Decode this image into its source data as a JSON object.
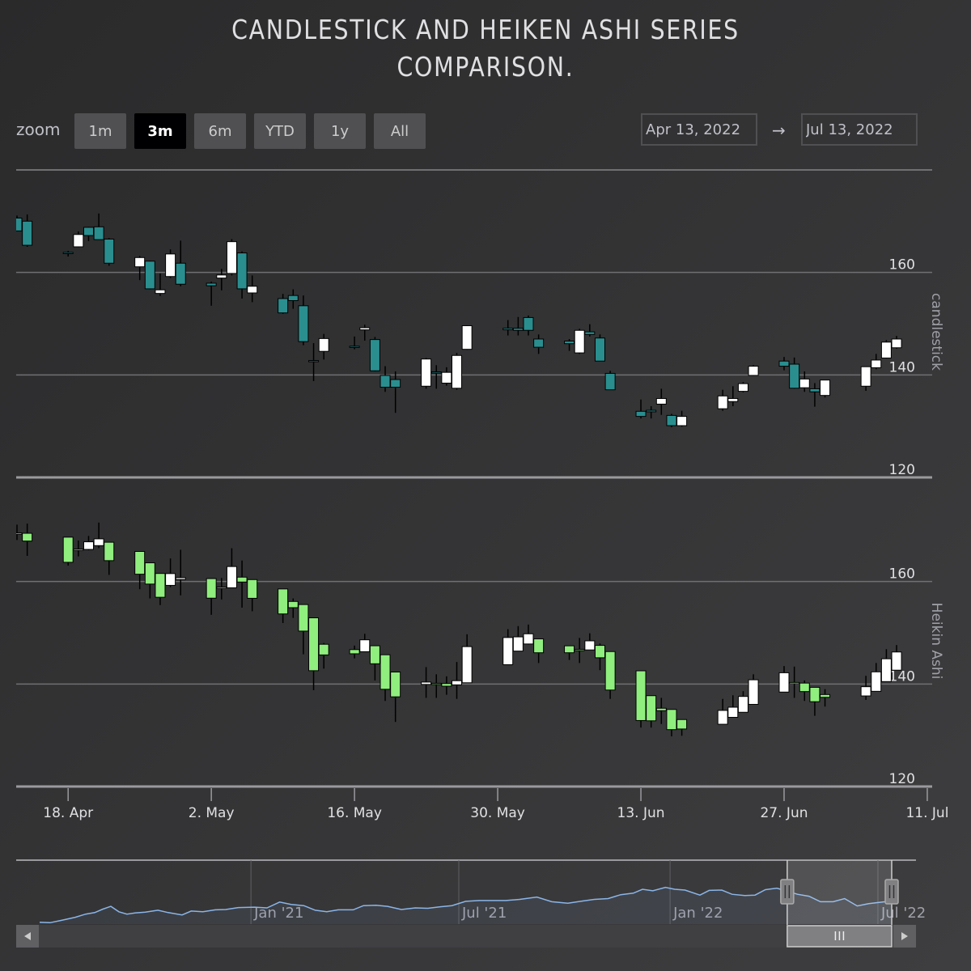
{
  "title_line1": "CANDLESTICK AND HEIKEN ASHI SERIES",
  "title_line2": "COMPARISON.",
  "range_selector": {
    "zoom_label": "zoom",
    "buttons": [
      "1m",
      "3m",
      "6m",
      "YTD",
      "1y",
      "All"
    ],
    "active": "3m",
    "from": "Apr 13, 2022",
    "arrow": "→",
    "to": "Jul 13, 2022"
  },
  "colors": {
    "candle_down": "#2a8e8f",
    "candle_up": "#ffffff",
    "ha_down": "#90ee7e",
    "ha_up": "#ffffff",
    "grid": "#707073",
    "navigator_line": "#8bb5e8"
  },
  "chart_data": [
    {
      "type": "candlestick",
      "name": "candlestick",
      "y_axis_title": "candlestick",
      "y_ticks": [
        120,
        140,
        160
      ],
      "ylim": [
        120,
        180
      ],
      "x_ticks": [
        "18. Apr",
        "2. May",
        "16. May",
        "30. May",
        "13. Jun",
        "27. Jun",
        "11. Jul"
      ],
      "dates": [
        "2022-04-13",
        "2022-04-14",
        "2022-04-18",
        "2022-04-19",
        "2022-04-20",
        "2022-04-21",
        "2022-04-22",
        "2022-04-25",
        "2022-04-26",
        "2022-04-27",
        "2022-04-28",
        "2022-04-29",
        "2022-05-02",
        "2022-05-03",
        "2022-05-04",
        "2022-05-05",
        "2022-05-06",
        "2022-05-09",
        "2022-05-10",
        "2022-05-11",
        "2022-05-12",
        "2022-05-13",
        "2022-05-16",
        "2022-05-17",
        "2022-05-18",
        "2022-05-19",
        "2022-05-20",
        "2022-05-23",
        "2022-05-24",
        "2022-05-25",
        "2022-05-26",
        "2022-05-27",
        "2022-05-31",
        "2022-06-01",
        "2022-06-02",
        "2022-06-03",
        "2022-06-06",
        "2022-06-07",
        "2022-06-08",
        "2022-06-09",
        "2022-06-10",
        "2022-06-13",
        "2022-06-14",
        "2022-06-15",
        "2022-06-16",
        "2022-06-17",
        "2022-06-21",
        "2022-06-22",
        "2022-06-23",
        "2022-06-24",
        "2022-06-27",
        "2022-06-28",
        "2022-06-29",
        "2022-06-30",
        "2022-07-01",
        "2022-07-05",
        "2022-07-06",
        "2022-07-07",
        "2022-07-08",
        "2022-07-11",
        "2022-07-12",
        "2022-07-13"
      ],
      "ohlc": [
        [
          170.6,
          171.1,
          168.1,
          168.1
        ],
        [
          170.0,
          171.3,
          165.0,
          165.3
        ],
        [
          163.9,
          164.2,
          163.1,
          163.8
        ],
        [
          165.0,
          168.0,
          164.9,
          167.4
        ],
        [
          168.8,
          168.9,
          166.1,
          167.2
        ],
        [
          168.9,
          171.5,
          166.5,
          166.4
        ],
        [
          166.5,
          166.7,
          161.3,
          161.8
        ],
        [
          161.1,
          163.2,
          158.5,
          162.9
        ],
        [
          162.2,
          162.3,
          156.7,
          156.8
        ],
        [
          155.9,
          159.8,
          155.4,
          156.6
        ],
        [
          159.2,
          164.5,
          158.9,
          163.6
        ],
        [
          161.8,
          166.2,
          157.3,
          157.7
        ],
        [
          157.9,
          158.2,
          153.5,
          157.4
        ],
        [
          158.9,
          160.7,
          156.5,
          159.5
        ],
        [
          159.8,
          166.5,
          159.4,
          166.0
        ],
        [
          163.8,
          164.1,
          154.9,
          156.8
        ],
        [
          156.0,
          159.4,
          154.2,
          157.3
        ],
        [
          154.9,
          155.8,
          151.9,
          152.1
        ],
        [
          155.5,
          156.7,
          152.9,
          154.5
        ],
        [
          153.5,
          155.5,
          145.8,
          146.5
        ],
        [
          142.8,
          146.2,
          138.8,
          142.6
        ],
        [
          144.6,
          148.0,
          143.0,
          147.1
        ],
        [
          145.6,
          147.5,
          145.0,
          145.5
        ],
        [
          148.8,
          149.8,
          146.7,
          149.2
        ],
        [
          146.9,
          147.4,
          140.7,
          140.8
        ],
        [
          139.9,
          141.7,
          136.7,
          137.6
        ],
        [
          139.1,
          140.7,
          132.6,
          137.6
        ],
        [
          137.8,
          143.3,
          137.3,
          143.1
        ],
        [
          140.6,
          141.9,
          137.3,
          140.4
        ],
        [
          138.4,
          141.5,
          137.9,
          140.5
        ],
        [
          137.4,
          144.3,
          137.1,
          143.8
        ],
        [
          145.0,
          149.7,
          144.9,
          149.6
        ],
        [
          149.1,
          150.7,
          147.7,
          148.8
        ],
        [
          149.1,
          151.3,
          147.7,
          148.7
        ],
        [
          151.2,
          151.6,
          147.7,
          148.7
        ],
        [
          147.0,
          147.9,
          144.1,
          145.4
        ],
        [
          146.6,
          147.0,
          144.7,
          146.1
        ],
        [
          144.3,
          149.0,
          144.1,
          148.7
        ],
        [
          148.4,
          149.9,
          147.5,
          147.9
        ],
        [
          147.2,
          147.9,
          142.7,
          142.7
        ],
        [
          140.3,
          140.8,
          137.1,
          137.1
        ],
        [
          132.9,
          135.2,
          131.5,
          131.9
        ],
        [
          133.1,
          133.9,
          131.5,
          132.8
        ],
        [
          134.3,
          137.3,
          132.2,
          135.4
        ],
        [
          132.1,
          132.4,
          129.8,
          130.1
        ],
        [
          130.1,
          133.0,
          129.9,
          131.9
        ],
        [
          133.4,
          137.1,
          133.0,
          135.9
        ],
        [
          134.8,
          137.8,
          133.9,
          135.4
        ],
        [
          136.8,
          138.6,
          136.6,
          138.3
        ],
        [
          139.9,
          141.9,
          139.8,
          141.7
        ],
        [
          142.7,
          143.5,
          140.9,
          141.7
        ],
        [
          142.1,
          143.4,
          137.3,
          137.4
        ],
        [
          137.5,
          140.7,
          136.7,
          139.2
        ],
        [
          137.3,
          138.4,
          133.8,
          136.7
        ],
        [
          136.0,
          139.0,
          135.6,
          139.0
        ],
        [
          137.8,
          141.6,
          136.9,
          141.6
        ],
        [
          141.4,
          144.1,
          141.1,
          142.9
        ],
        [
          143.3,
          146.8,
          143.2,
          146.4
        ],
        [
          145.3,
          147.6,
          145.1,
          147.0
        ],
        [
          146.1,
          146.6,
          143.2,
          144.9
        ],
        [
          145.8,
          148.5,
          145.0,
          145.9
        ],
        [
          142.9,
          146.5,
          142.1,
          145.3
        ]
      ]
    },
    {
      "type": "heikinashi",
      "name": "Heikin Ashi",
      "y_axis_title": "Heikin Ashi",
      "y_ticks": [
        120,
        140,
        160
      ],
      "ylim": [
        120,
        180
      ],
      "x_ticks": [
        "18. Apr",
        "2. May",
        "16. May",
        "30. May",
        "13. Jun",
        "27. Jun",
        "11. Jul"
      ],
      "derived_from": "candlestick ohlc"
    },
    {
      "type": "area",
      "name": "navigator",
      "x_ticks": [
        "Jan '21",
        "Jul '21",
        "Jan '22",
        "Jul '22"
      ],
      "xlim": [
        "2020-07-01",
        "2022-07-13"
      ],
      "selected_range": [
        "2022-04-13",
        "2022-07-13"
      ],
      "points": [
        [
          "2020-07-01",
          90
        ],
        [
          "2020-07-10",
          89
        ],
        [
          "2020-07-20",
          95
        ],
        [
          "2020-08-01",
          103
        ],
        [
          "2020-08-10",
          111
        ],
        [
          "2020-08-18",
          115
        ],
        [
          "2020-08-25",
          124
        ],
        [
          "2020-09-01",
          131
        ],
        [
          "2020-09-08",
          117
        ],
        [
          "2020-09-15",
          111
        ],
        [
          "2020-09-22",
          114
        ],
        [
          "2020-10-01",
          116
        ],
        [
          "2020-10-12",
          121
        ],
        [
          "2020-10-21",
          115
        ],
        [
          "2020-11-02",
          109
        ],
        [
          "2020-11-10",
          119
        ],
        [
          "2020-11-20",
          117
        ],
        [
          "2020-12-01",
          122
        ],
        [
          "2020-12-10",
          123
        ],
        [
          "2020-12-21",
          128
        ],
        [
          "2021-01-04",
          129
        ],
        [
          "2021-01-15",
          127
        ],
        [
          "2021-01-26",
          142
        ],
        [
          "2021-02-05",
          136
        ],
        [
          "2021-02-16",
          133
        ],
        [
          "2021-02-26",
          121
        ],
        [
          "2021-03-08",
          117
        ],
        [
          "2021-03-18",
          122
        ],
        [
          "2021-03-31",
          122
        ],
        [
          "2021-04-09",
          133
        ],
        [
          "2021-04-20",
          134
        ],
        [
          "2021-04-30",
          131
        ],
        [
          "2021-05-12",
          123
        ],
        [
          "2021-05-24",
          127
        ],
        [
          "2021-06-04",
          126
        ],
        [
          "2021-06-15",
          130
        ],
        [
          "2021-06-25",
          133
        ],
        [
          "2021-07-07",
          144
        ],
        [
          "2021-07-19",
          146
        ],
        [
          "2021-07-30",
          146
        ],
        [
          "2021-08-11",
          146
        ],
        [
          "2021-08-23",
          149
        ],
        [
          "2021-09-07",
          155
        ],
        [
          "2021-09-20",
          143
        ],
        [
          "2021-10-04",
          139
        ],
        [
          "2021-10-15",
          144
        ],
        [
          "2021-10-27",
          149
        ],
        [
          "2021-11-08",
          151
        ],
        [
          "2021-11-19",
          161
        ],
        [
          "2021-11-30",
          165
        ],
        [
          "2021-12-08",
          175
        ],
        [
          "2021-12-17",
          171
        ],
        [
          "2021-12-28",
          180
        ],
        [
          "2022-01-05",
          175
        ],
        [
          "2022-01-14",
          173
        ],
        [
          "2022-01-27",
          160
        ],
        [
          "2022-02-04",
          172
        ],
        [
          "2022-02-15",
          173
        ],
        [
          "2022-02-24",
          162
        ],
        [
          "2022-03-07",
          159
        ],
        [
          "2022-03-16",
          160
        ],
        [
          "2022-03-25",
          174
        ],
        [
          "2022-04-04",
          178
        ],
        [
          "2022-04-13",
          170
        ],
        [
          "2022-04-22",
          162
        ],
        [
          "2022-05-02",
          157
        ],
        [
          "2022-05-12",
          143
        ],
        [
          "2022-05-23",
          143
        ],
        [
          "2022-06-02",
          151
        ],
        [
          "2022-06-13",
          132
        ],
        [
          "2022-06-23",
          138
        ],
        [
          "2022-07-05",
          142
        ],
        [
          "2022-07-13",
          145
        ]
      ]
    }
  ]
}
